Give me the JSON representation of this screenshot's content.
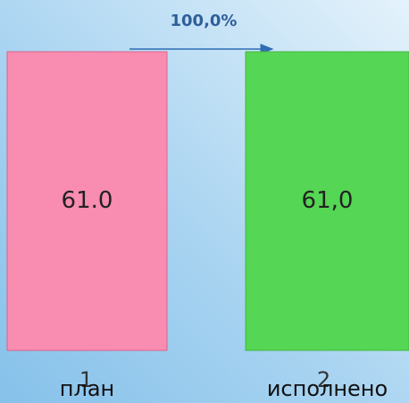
{
  "chart_data": {
    "type": "bar",
    "annotation": "100,0%",
    "categories": [
      "план",
      "исполнено"
    ],
    "category_numbers": [
      "1",
      "2"
    ],
    "values": [
      61.0,
      61.0
    ],
    "value_labels": [
      "61.0",
      "61,0"
    ],
    "colors": [
      "#f98cb1",
      "#55d654"
    ],
    "ylim": [
      0,
      61
    ]
  }
}
